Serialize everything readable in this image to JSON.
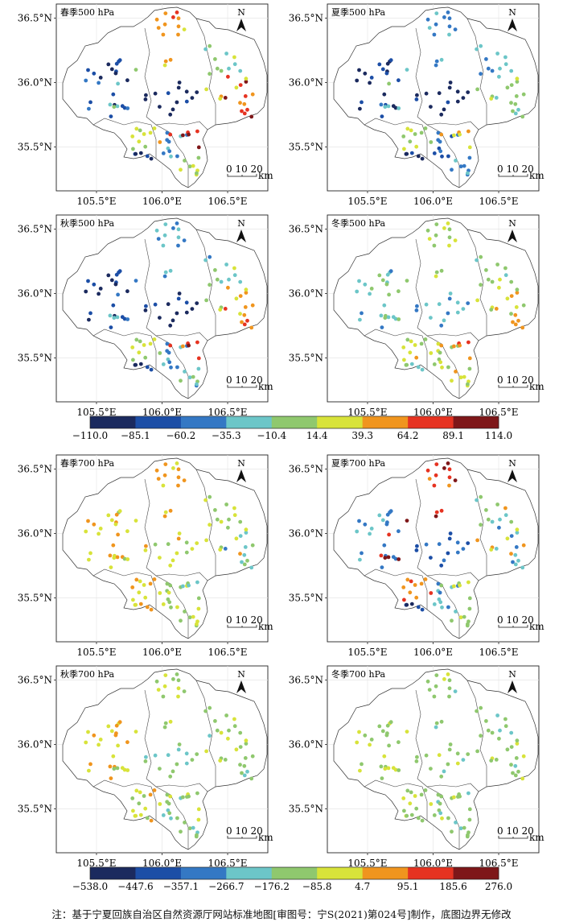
{
  "panels": [
    {
      "title": "春季500 hPa",
      "palette": "p500",
      "vals": [
        0.15,
        0.72,
        0.05,
        0.45,
        0.85,
        0.6,
        0.1,
        0.3,
        0.55,
        0.9,
        0.4,
        0.65
      ]
    },
    {
      "title": "夏季500 hPa",
      "palette": "p500",
      "vals": [
        0.1,
        0.3,
        0.05,
        0.35,
        0.45,
        0.55,
        0.05,
        0.2,
        0.3,
        0.65,
        0.4,
        0.5
      ]
    },
    {
      "title": "秋季500 hPa",
      "palette": "p500",
      "vals": [
        0.12,
        0.35,
        0.08,
        0.4,
        0.75,
        0.55,
        0.1,
        0.3,
        0.4,
        0.85,
        0.35,
        0.6
      ]
    },
    {
      "title": "冬季500 hPa",
      "palette": "p500",
      "vals": [
        0.4,
        0.55,
        0.35,
        0.5,
        0.7,
        0.6,
        0.45,
        0.55,
        0.6,
        0.75,
        0.45,
        0.55
      ]
    },
    {
      "title": "春季700 hPa",
      "palette": "p700",
      "vals": [
        0.62,
        0.7,
        0.6,
        0.55,
        0.4,
        0.65,
        0.65,
        0.55,
        0.55,
        0.45,
        0.68,
        0.6
      ]
    },
    {
      "title": "夏季700 hPa",
      "palette": "p700",
      "vals": [
        0.3,
        0.85,
        0.2,
        0.45,
        0.35,
        0.75,
        0.15,
        0.35,
        0.5,
        0.55,
        0.9,
        0.7
      ]
    },
    {
      "title": "秋季700 hPa",
      "palette": "p700",
      "vals": [
        0.65,
        0.55,
        0.45,
        0.5,
        0.5,
        0.6,
        0.6,
        0.45,
        0.5,
        0.55,
        0.6,
        0.58
      ]
    },
    {
      "title": "冬季700 hPa",
      "palette": "p700",
      "vals": [
        0.55,
        0.5,
        0.5,
        0.48,
        0.5,
        0.55,
        0.52,
        0.5,
        0.48,
        0.5,
        0.55,
        0.52
      ]
    }
  ],
  "axes": {
    "y_ticks": [
      "36.5°N",
      "36.0°N",
      "35.5°N"
    ],
    "x_ticks": [
      "105.5°E",
      "106.0°E",
      "106.5°E"
    ]
  },
  "north_label": "N",
  "scalebar": {
    "numbers": "0 10 20",
    "unit": "km"
  },
  "colorbars": [
    {
      "labels": [
        "−110.0",
        "−85.1",
        "−60.2",
        "−35.3",
        "−10.4",
        "14.4",
        "39.3",
        "64.2",
        "89.1",
        "114.0"
      ]
    },
    {
      "labels": [
        "−538.0",
        "−447.6",
        "−357.1",
        "−266.7",
        "−176.2",
        "−85.8",
        "4.7",
        "95.1",
        "185.6",
        "276.0"
      ]
    }
  ],
  "palette": [
    "#1b2a5e",
    "#1c4ea6",
    "#3478c4",
    "#6cc6c8",
    "#8fc86e",
    "#d8e33a",
    "#f0951e",
    "#e63321",
    "#7e1719"
  ],
  "note": "注：基于宁夏回族自治区自然资源厅网站标准地图[审图号：宁S(2021)第024号]制作，底图边界无修改"
}
